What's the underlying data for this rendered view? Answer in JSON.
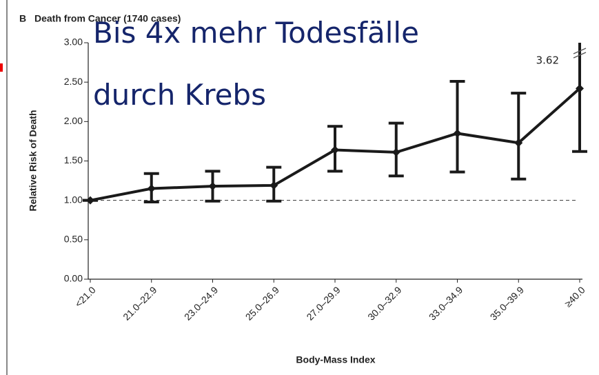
{
  "chart_data": {
    "type": "line",
    "panel_label": "B",
    "title": "Death from Cancer (1740 cases)",
    "overlay_text": [
      "Bis 4x mehr Todesfälle",
      "durch Krebs"
    ],
    "xlabel": "Body-Mass Index",
    "ylabel": "Relative Risk of Death",
    "categories": [
      "<21.0",
      "21.0–22.9",
      "23.0–24.9",
      "25.0–26.9",
      "27.0–29.9",
      "30.0–32.9",
      "33.0–34.9",
      "35.0–39.9",
      "≥40.0"
    ],
    "series": [
      {
        "name": "Death from Cancer",
        "color": "#1a1a1a",
        "values": [
          1.0,
          1.15,
          1.18,
          1.19,
          1.64,
          1.61,
          1.85,
          1.73,
          2.42
        ],
        "ci_low": [
          1.0,
          0.98,
          0.99,
          0.99,
          1.37,
          1.31,
          1.36,
          1.27,
          1.62
        ],
        "ci_high": [
          1.0,
          1.34,
          1.37,
          1.42,
          1.94,
          1.98,
          2.51,
          2.36,
          3.62
        ]
      }
    ],
    "annotation": {
      "text": "3.62",
      "value": 3.62
    },
    "reference_line": 1,
    "ylim": [
      0,
      3
    ],
    "yticks": [
      {
        "value": 0,
        "label": "0.00"
      },
      {
        "value": 0.5,
        "label": "0.50"
      },
      {
        "value": 1,
        "label": "1.00"
      },
      {
        "value": 1.5,
        "label": "1.50"
      },
      {
        "value": 2,
        "label": "2.00"
      },
      {
        "value": 2.5,
        "label": "2.50"
      },
      {
        "value": 3,
        "label": "3.00"
      }
    ]
  }
}
